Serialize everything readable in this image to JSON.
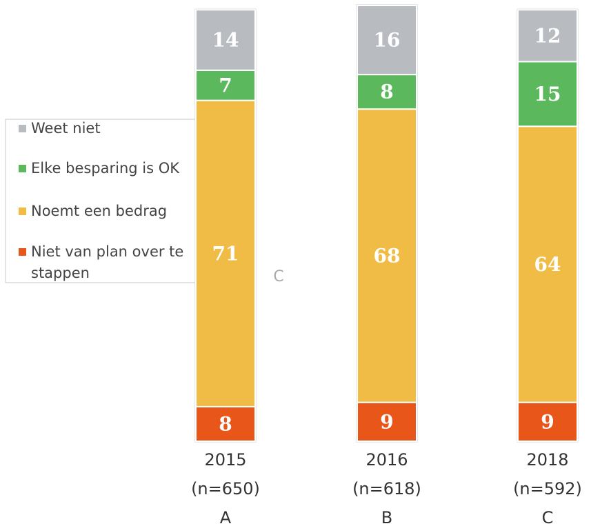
{
  "chart_data": {
    "type": "stacked_bar",
    "categories": [
      "2015",
      "2016",
      "2018"
    ],
    "sample_sizes": [
      "(n=650)",
      "(n=618)",
      "(n=592)"
    ],
    "group_labels": [
      "A",
      "B",
      "C"
    ],
    "series": [
      {
        "name": "Niet van plan over te stappen",
        "color": "#e8561a",
        "values": [
          8,
          9,
          9
        ]
      },
      {
        "name": "Noemt een bedrag",
        "color": "#f0bc45",
        "values": [
          71,
          68,
          64
        ]
      },
      {
        "name": "Elke besparing is OK",
        "color": "#5cb85c",
        "values": [
          7,
          8,
          15
        ]
      },
      {
        "name": "Weet niet",
        "color": "#b8bcc0",
        "values": [
          14,
          16,
          12
        ]
      }
    ],
    "annotations": [
      "C"
    ],
    "legend": "left"
  }
}
